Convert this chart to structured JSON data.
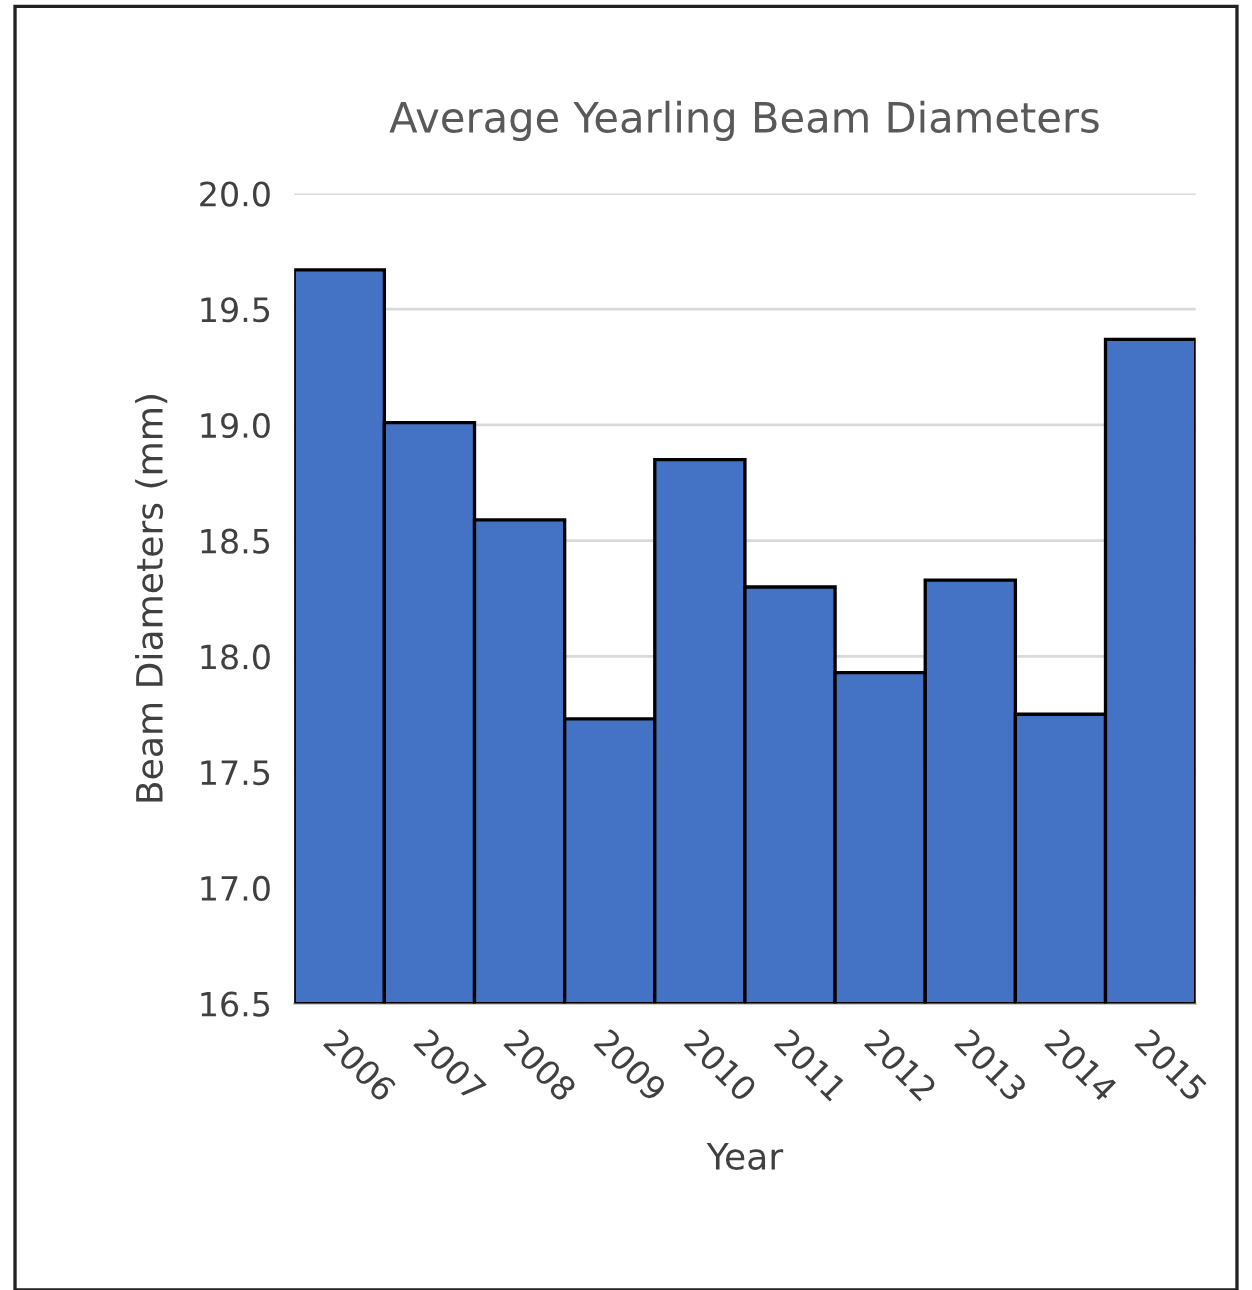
{
  "chart_data": {
    "type": "bar",
    "title": "Average Yearling Beam Diameters",
    "xlabel": "Year",
    "ylabel": "Beam Diameters (mm)",
    "categories": [
      "2006",
      "2007",
      "2008",
      "2009",
      "2010",
      "2011",
      "2012",
      "2013",
      "2014",
      "2015"
    ],
    "values": [
      19.67,
      19.01,
      18.59,
      17.73,
      18.85,
      18.3,
      17.93,
      18.33,
      17.75,
      19.37
    ],
    "color": "#4472c4",
    "ylim": [
      16.5,
      20.0
    ],
    "yticks": [
      {
        "value": 16.5,
        "label": "16.5"
      },
      {
        "value": 17.0,
        "label": "17.0"
      },
      {
        "value": 17.5,
        "label": "17.5"
      },
      {
        "value": 18.0,
        "label": "18.0"
      },
      {
        "value": 18.5,
        "label": "18.5"
      },
      {
        "value": 19.0,
        "label": "19.0"
      },
      {
        "value": 19.5,
        "label": "19.5"
      },
      {
        "value": 20.0,
        "label": "20.0"
      }
    ],
    "grid": "y"
  }
}
